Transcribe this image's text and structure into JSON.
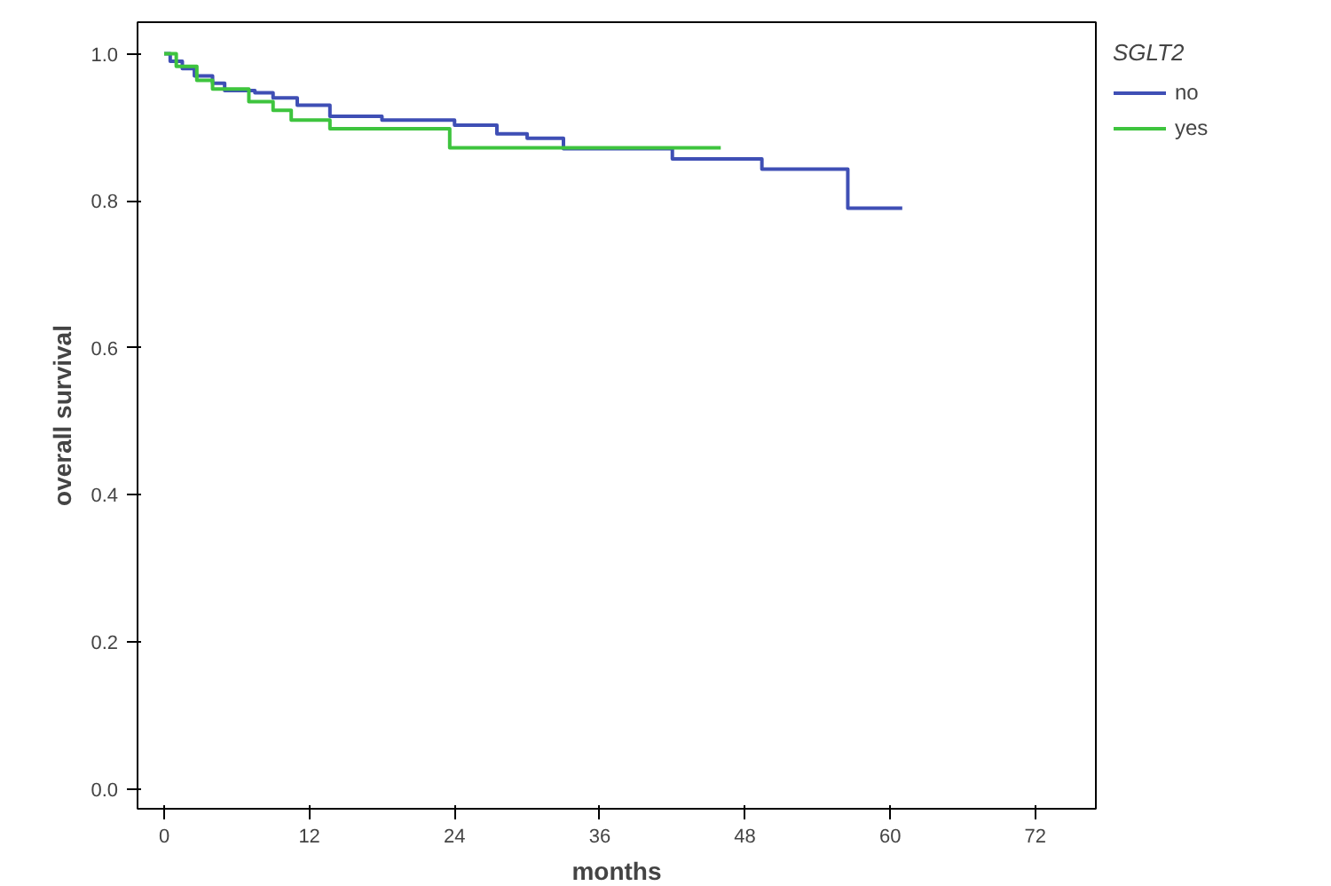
{
  "chart_data": {
    "type": "step",
    "xlabel": "months",
    "ylabel": "overall survival",
    "legend_title": "SGLT2",
    "legend": "top right",
    "grid": false,
    "marker": "none",
    "line_style": "solid",
    "xlim": [
      -2.2,
      77
    ],
    "ylim": [
      -0.027,
      1.043
    ],
    "xticks": [
      0,
      12,
      24,
      36,
      48,
      60,
      72
    ],
    "yticks": [
      {
        "value": 0,
        "label": "0.0"
      },
      {
        "value": 0.2,
        "label": "0.2"
      },
      {
        "value": 0.4,
        "label": "0.4"
      },
      {
        "value": 0.6,
        "label": "0.6"
      },
      {
        "value": 0.8,
        "label": "0.8"
      },
      {
        "value": 1,
        "label": "1.0"
      }
    ],
    "series": [
      {
        "name": "no",
        "color": "#3f4fb5",
        "x": [
          0,
          0.5,
          1.5,
          2.5,
          4,
          5,
          7.5,
          9,
          11,
          13.7,
          18,
          24,
          27.5,
          30,
          33,
          42,
          49.4,
          56.5,
          61
        ],
        "values": [
          1.0,
          0.99,
          0.98,
          0.97,
          0.96,
          0.95,
          0.947,
          0.94,
          0.93,
          0.915,
          0.91,
          0.903,
          0.891,
          0.885,
          0.871,
          0.857,
          0.843,
          0.79,
          0.79
        ]
      },
      {
        "name": "yes",
        "color": "#3ec43e",
        "x": [
          0,
          1,
          2.7,
          4,
          7,
          9,
          10.5,
          13.7,
          23.6,
          46
        ],
        "values": [
          1.0,
          0.983,
          0.964,
          0.952,
          0.935,
          0.923,
          0.91,
          0.898,
          0.872,
          0.872
        ]
      }
    ]
  }
}
